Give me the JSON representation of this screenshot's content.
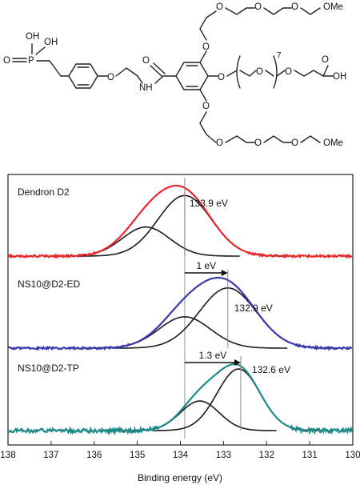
{
  "structure": {
    "labels": {
      "oh_top": "OH",
      "oh_mid": "OH",
      "oxo": "O",
      "phosphorus": "P",
      "o_aryl_ether": "O",
      "amide_nh": "NH",
      "amide_o": "O",
      "o_top_link": "O",
      "o_top_1": "O",
      "o_top_2": "O",
      "o_top_3": "O",
      "ome_top": "OMe",
      "o_mid_link": "O",
      "o_mid_peg": "O",
      "repeat_n": "7",
      "o_mid_end": "O",
      "o_acid": "O",
      "oh_acid": "OH",
      "o_bot_link": "O",
      "o_bot_1": "O",
      "o_bot_2": "O",
      "o_bot_3": "O",
      "ome_bot": "OMe"
    }
  },
  "chart_data": {
    "type": "line",
    "xlabel": "Binding energy (eV)",
    "xlim": [
      138,
      130
    ],
    "x_ticks": [
      "138",
      "137",
      "136",
      "135",
      "134",
      "133",
      "132",
      "131",
      "130"
    ],
    "x_tick_values": [
      138,
      137,
      136,
      135,
      134,
      133,
      132,
      131,
      130
    ],
    "panels": [
      {
        "name": "Dendron D2",
        "envelope_color": "#e8282b",
        "peak_label": "133.9 eV",
        "peak_position": 133.9,
        "components": [
          {
            "center": 133.9,
            "amplitude": 1.0,
            "sigma": 0.62
          },
          {
            "center": 134.8,
            "amplitude": 0.48,
            "sigma": 0.55
          }
        ]
      },
      {
        "name": "NS10@D2-ED",
        "envelope_color": "#3a3ab0",
        "peak_label": "132.9 eV",
        "peak_position": 132.9,
        "shift_label": "1 eV",
        "components": [
          {
            "center": 132.9,
            "amplitude": 1.0,
            "sigma": 0.66
          },
          {
            "center": 133.9,
            "amplitude": 0.52,
            "sigma": 0.6
          }
        ]
      },
      {
        "name": "NS10@D2-TP",
        "envelope_color": "#1f8a87",
        "peak_label": "132.6 eV",
        "peak_position": 132.6,
        "shift_label": "1.3 eV",
        "components": [
          {
            "center": 132.65,
            "amplitude": 1.0,
            "sigma": 0.5
          },
          {
            "center": 133.55,
            "amplitude": 0.48,
            "sigma": 0.45
          }
        ]
      }
    ],
    "reference_line": 133.9,
    "grid": false
  }
}
